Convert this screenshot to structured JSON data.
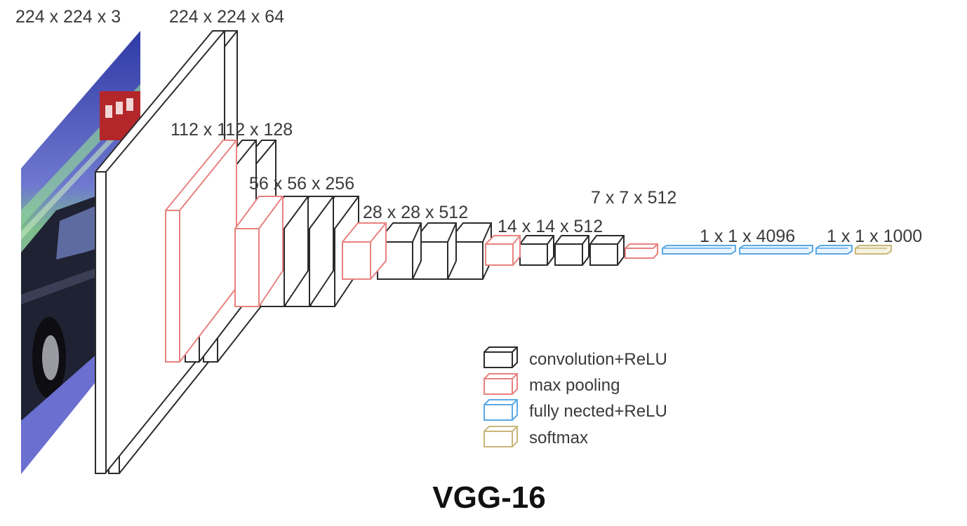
{
  "title": "VGG-16",
  "dims": {
    "input": "224 x 224 x 3",
    "conv1": "224 x 224 x 64",
    "conv2": "112 x 112 x 128",
    "conv3": "56 x 56 x 256",
    "conv4": "28 x 28 x 512",
    "conv5": "14 x 14 x 512",
    "pool5": "7 x 7 x 512",
    "fc": "1 x 1 x 4096",
    "out": "1 x 1 x 1000"
  },
  "legend": {
    "conv": "convolution+ReLU",
    "pool": "max pooling",
    "fc": "fully nected+ReLU",
    "softmax": "softmax"
  },
  "colors": {
    "conv": "#2b2b2b",
    "pool": "#e8827f",
    "fc": "#5aa9e6",
    "softmax": "#c9b77a"
  }
}
